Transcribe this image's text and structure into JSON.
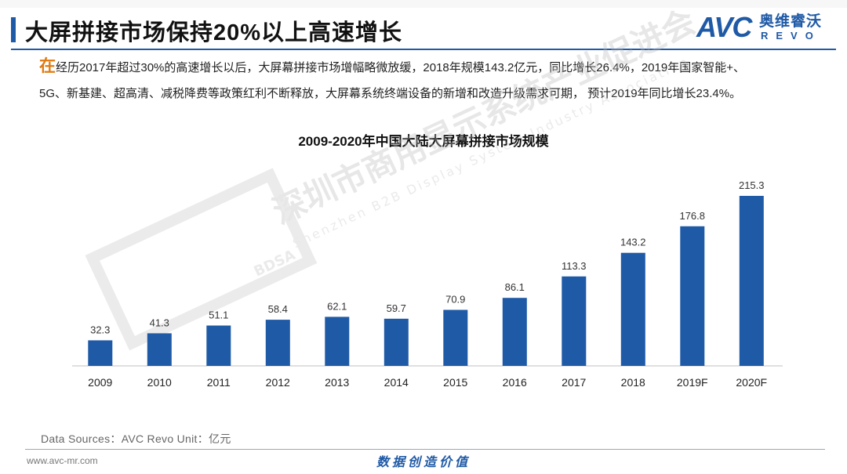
{
  "slide": {
    "title": "大屏拼接市场保持20%以上高速增长",
    "logo": {
      "brand": "AVC",
      "cn": "奥维睿沃",
      "revo": "REVO"
    },
    "intro": {
      "cap": "在",
      "line1": "经历2017年超过30%的高速增长以后，大屏幕拼接市场增幅略微放缓，2018年规模143.2亿元，同比增长26.4%，2019年国家智能+、",
      "line2": "5G、新基建、超高清、减税降费等政策红利不断释放，大屏幕系统终端设备的新增和改造升级需求可期，  预计2019年同比增长23.4%。"
    },
    "watermark": {
      "cn": "深圳市商用显示系统产业促进会",
      "en": "Shenzhen B2B Display System Industry Association",
      "abbr": "BDSA"
    },
    "footer": {
      "source": "Data Sources：AVC Revo    Unit：亿元",
      "url": "www.avc-mr.com",
      "slogan": "数据创造价值"
    }
  },
  "colors": {
    "bar": "#1f5aa6",
    "accent": "#e07b10",
    "axis": "#bfbfbf"
  },
  "chart_data": {
    "type": "bar",
    "title": "2009-2020年中国大陆大屏幕拼接市场规模",
    "categories": [
      "2009",
      "2010",
      "2011",
      "2012",
      "2013",
      "2014",
      "2015",
      "2016",
      "2017",
      "2018",
      "2019F",
      "2020F"
    ],
    "values": [
      32.3,
      41.3,
      51.1,
      58.4,
      62.1,
      59.7,
      70.9,
      86.1,
      113.3,
      143.2,
      176.8,
      215.3
    ],
    "value_labels": [
      "32.3",
      "41.3",
      "51.1",
      "58.4",
      "62.1",
      "59.7",
      "70.9",
      "86.1",
      "113.3",
      "143.2",
      "176.8",
      "215.3"
    ],
    "ylim": [
      0,
      215.3
    ],
    "grid": false,
    "data_labels": true
  }
}
